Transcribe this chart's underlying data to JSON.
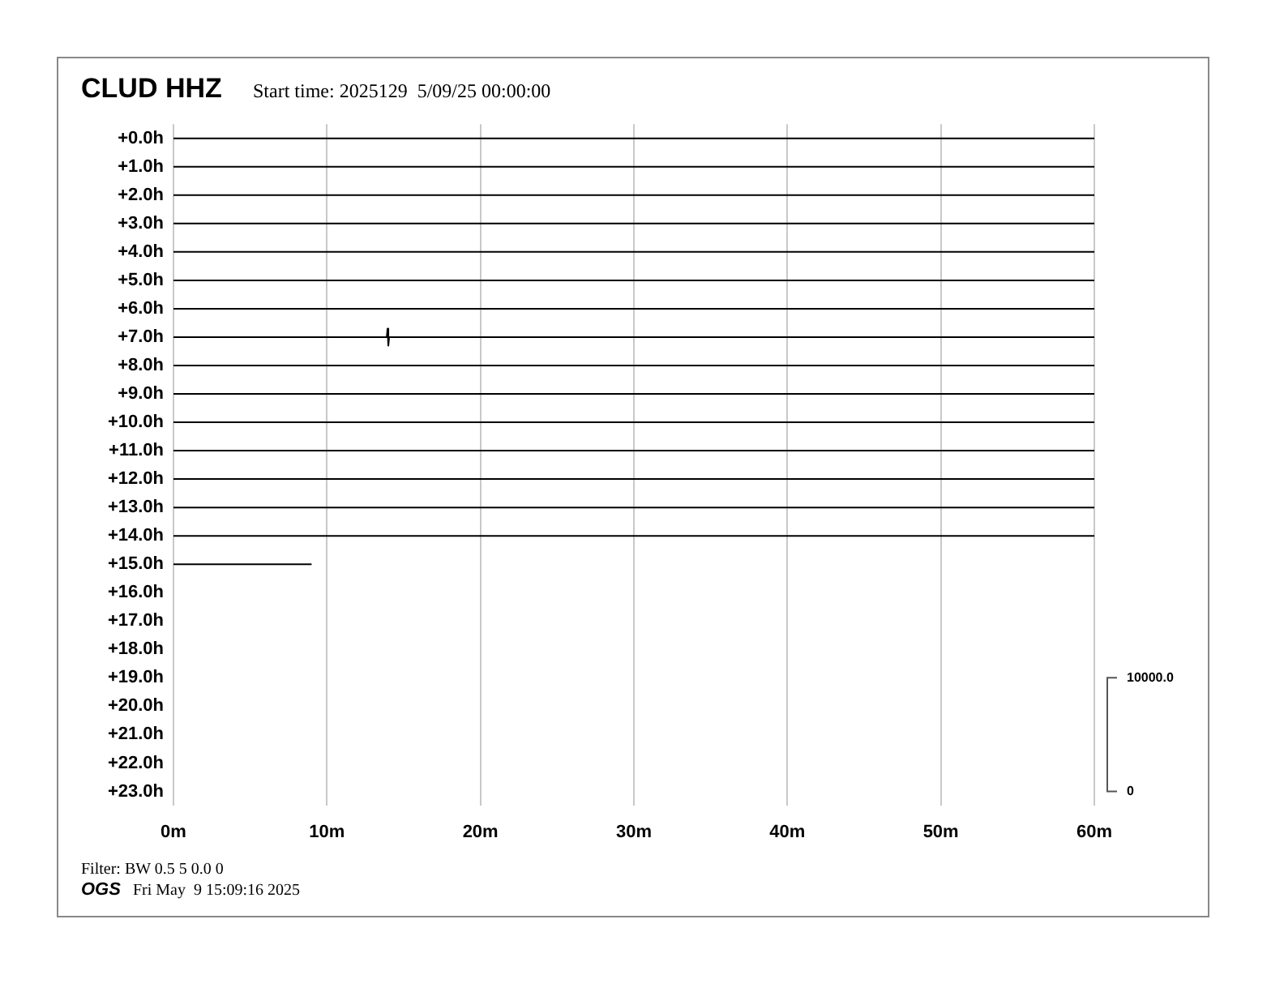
{
  "chart_data": {
    "type": "line",
    "title": "CLUD HHZ",
    "subtitle": "Start time: 2025129  5/09/25 00:00:00",
    "annotations": [
      "Filter: BW 0.5 5 0.0 0",
      "OGS",
      "Fri May  9 15:09:16 2025"
    ],
    "xlim": [
      0,
      60
    ],
    "xticks": [
      {
        "value": 0,
        "label": "0m"
      },
      {
        "value": 10,
        "label": "10m"
      },
      {
        "value": 20,
        "label": "20m"
      },
      {
        "value": 30,
        "label": "30m"
      },
      {
        "value": 40,
        "label": "40m"
      },
      {
        "value": 50,
        "label": "50m"
      },
      {
        "value": 60,
        "label": "60m"
      }
    ],
    "ylim": [
      23.5,
      -0.5
    ],
    "yticks": [
      {
        "value": 0,
        "label": "+0.0h"
      },
      {
        "value": 1,
        "label": "+1.0h"
      },
      {
        "value": 2,
        "label": "+2.0h"
      },
      {
        "value": 3,
        "label": "+3.0h"
      },
      {
        "value": 4,
        "label": "+4.0h"
      },
      {
        "value": 5,
        "label": "+5.0h"
      },
      {
        "value": 6,
        "label": "+6.0h"
      },
      {
        "value": 7,
        "label": "+7.0h"
      },
      {
        "value": 8,
        "label": "+8.0h"
      },
      {
        "value": 9,
        "label": "+9.0h"
      },
      {
        "value": 10,
        "label": "+10.0h"
      },
      {
        "value": 11,
        "label": "+11.0h"
      },
      {
        "value": 12,
        "label": "+12.0h"
      },
      {
        "value": 13,
        "label": "+13.0h"
      },
      {
        "value": 14,
        "label": "+14.0h"
      },
      {
        "value": 15,
        "label": "+15.0h"
      },
      {
        "value": 16,
        "label": "+16.0h"
      },
      {
        "value": 17,
        "label": "+17.0h"
      },
      {
        "value": 18,
        "label": "+18.0h"
      },
      {
        "value": 19,
        "label": "+19.0h"
      },
      {
        "value": 20,
        "label": "+20.0h"
      },
      {
        "value": 21,
        "label": "+21.0h"
      },
      {
        "value": 22,
        "label": "+22.0h"
      },
      {
        "value": 23,
        "label": "+23.0h"
      }
    ],
    "y2lim": [
      -1250,
      58750
    ],
    "y2ticks": [
      0,
      {
        "value": 10000,
        "label": "10000.0"
      }
    ],
    "grid": "x",
    "marker": "none",
    "line_style": "solid",
    "series": [
      {
        "color": "#000000",
        "x": [
          0,
          60
        ],
        "values": [
          0,
          0
        ]
      },
      {
        "color": "#000000",
        "x": [
          0,
          60
        ],
        "values": [
          1,
          1
        ]
      },
      {
        "color": "#000000",
        "x": [
          0,
          60
        ],
        "values": [
          2,
          2
        ]
      },
      {
        "color": "#000000",
        "x": [
          0,
          60
        ],
        "values": [
          3,
          3
        ]
      },
      {
        "color": "#000000",
        "x": [
          0,
          60
        ],
        "values": [
          4,
          4
        ]
      },
      {
        "color": "#000000",
        "x": [
          0,
          60
        ],
        "values": [
          5,
          5
        ]
      },
      {
        "color": "#000000",
        "x": [
          0,
          60
        ],
        "values": [
          6,
          6
        ]
      },
      {
        "color": "#000000",
        "x": [
          0,
          13.9,
          13.95,
          14.0,
          14.05,
          60
        ],
        "values": [
          7,
          7,
          6.7,
          7.3,
          7,
          7
        ]
      },
      {
        "color": "#000000",
        "x": [
          0,
          60
        ],
        "values": [
          8,
          8
        ]
      },
      {
        "color": "#000000",
        "x": [
          0,
          60
        ],
        "values": [
          9,
          9
        ]
      },
      {
        "color": "#000000",
        "x": [
          0,
          60
        ],
        "values": [
          10,
          10
        ]
      },
      {
        "color": "#000000",
        "x": [
          0,
          60
        ],
        "values": [
          11,
          11
        ]
      },
      {
        "color": "#000000",
        "x": [
          0,
          60
        ],
        "values": [
          12,
          12
        ]
      },
      {
        "color": "#000000",
        "x": [
          0,
          60
        ],
        "values": [
          13,
          13
        ]
      },
      {
        "color": "#000000",
        "x": [
          0,
          60
        ],
        "values": [
          14,
          14
        ]
      },
      {
        "color": "#000000",
        "x": [
          0,
          9
        ],
        "values": [
          15,
          15
        ]
      }
    ]
  }
}
